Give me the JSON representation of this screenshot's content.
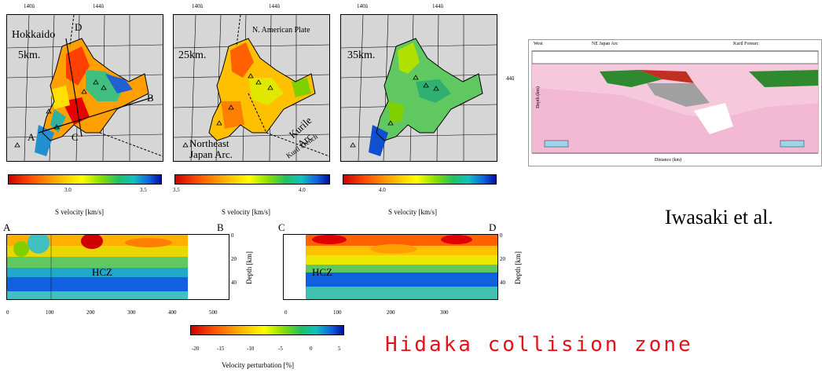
{
  "maps": [
    {
      "depth": "5km.",
      "place1": "Hokkaido",
      "ticks_top": [
        "140û",
        "144û"
      ]
    },
    {
      "depth": "25km.",
      "place1": "N. American Plate",
      "place2": "Northeast",
      "place3": "Japan Arc.",
      "place4": "Kurile Arc",
      "place5": "Kuril Trench",
      "ticks_top": [
        "140û",
        "144û"
      ]
    },
    {
      "depth": "35km.",
      "ticks_top": [
        "140û",
        "144û"
      ]
    }
  ],
  "map1_letters": {
    "a": "A",
    "b": "B",
    "c": "C",
    "d": "D"
  },
  "lat_label": "44û",
  "colorbars": [
    {
      "ticks": [
        "3.0",
        "3.5"
      ],
      "caption": "S velocity [km/s]"
    },
    {
      "ticks": [
        "3.5",
        "4.0"
      ],
      "caption": "S velocity [km/s]"
    },
    {
      "ticks": [
        "4.0"
      ],
      "caption": "S velocity [km/s]"
    }
  ],
  "section_ab": {
    "start": "A",
    "end": "B",
    "zone": "HCZ",
    "xticks": [
      "0",
      "100",
      "200",
      "300",
      "400",
      "500"
    ],
    "yticks": [
      "0",
      "20",
      "40"
    ],
    "ylabel": "Depth [km]"
  },
  "section_cd": {
    "start": "C",
    "end": "D",
    "zone": "HCZ",
    "xticks": [
      "0",
      "100",
      "200",
      "300"
    ],
    "yticks": [
      "0",
      "20",
      "40"
    ],
    "ylabel": "Depth [km]"
  },
  "perturbation_bar": {
    "ticks": [
      "-20",
      "-15",
      "-10",
      "-5",
      "0",
      "5"
    ],
    "caption": "Velocity perturbation [%]"
  },
  "iwasaki": {
    "citation": "Iwasaki et al.",
    "west": "West",
    "arc": "NE Japan Arc",
    "east": "Kuril Forearc",
    "lat": "44û",
    "depth_axis": "Depth (km)",
    "dist_axis": "Distance (km)"
  },
  "title": "Hidaka collision zone"
}
